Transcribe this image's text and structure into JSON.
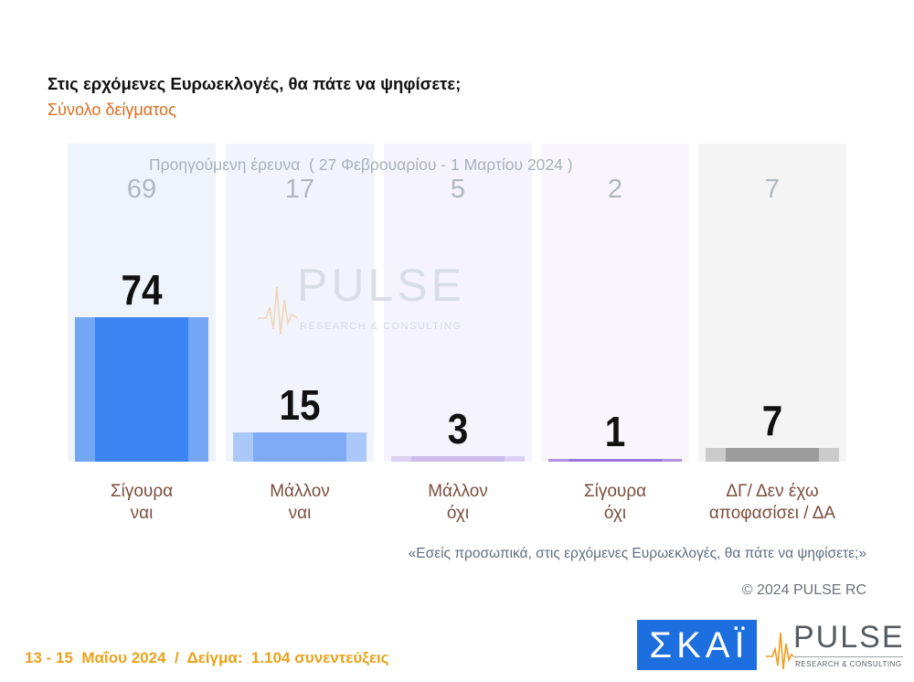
{
  "chart_data": {
    "type": "bar",
    "title": "Στις ερχόμενες Ευρωεκλογές, θα πάτε να ψηφίσετε;",
    "subtitle": "Σύνολο δείγματος",
    "xlabel": "",
    "ylabel": "",
    "grid": false,
    "categories": [
      "Σίγουρα\nναι",
      "Μάλλον\nναι",
      "Μάλλον\nόχι",
      "Σίγουρα\nόχι",
      "ΔΓ/ Δεν έχω\nαποφασίσει / ΔΑ"
    ],
    "series": [
      {
        "values": [
          74,
          15,
          3,
          1,
          7
        ]
      },
      {
        "name": "Προηγούμενη έρευνα  ( 27 Φεβρουαρίου - 1 Μαρτίου 2024 )",
        "values": [
          69,
          17,
          5,
          2,
          7
        ]
      }
    ]
  },
  "colors": {
    "bars": [
      {
        "outer": "#74a6f6",
        "inner": "#3c84f1"
      },
      {
        "outer": "#aac8f9",
        "inner": "#7eaaf6"
      },
      {
        "outer": "#dbd0f1",
        "inner": "#cbbbeb"
      },
      {
        "outer": "#b391e5",
        "inner": "#9d73de"
      },
      {
        "outer": "#cbcbcb",
        "inner": "#9c9c9c"
      }
    ],
    "columns": [
      "#eef3fc",
      "#f1f4fc",
      "#f5f4fc",
      "#f8f6fc",
      "#f4f4f5"
    ]
  },
  "question_quote": "«Εσείς προσωπικά, στις ερχόμενες Ευρωεκλογές, θα πάτε να ψηφίσετε;»",
  "copyright": "© 2024 PULSE RC",
  "footer": {
    "fieldwork": "13 - 15  Μαΐου 2024  /  Δείγμα:  1.104 συνεντεύξεις"
  },
  "logos": {
    "skai": "ΣΚΑΪ",
    "pulse": "PULSE",
    "pulse_tagline": "RESEARCH & CONSULTING"
  },
  "watermark": {
    "text": "PULSE",
    "tagline": "RESEARCH & CONSULTING"
  }
}
